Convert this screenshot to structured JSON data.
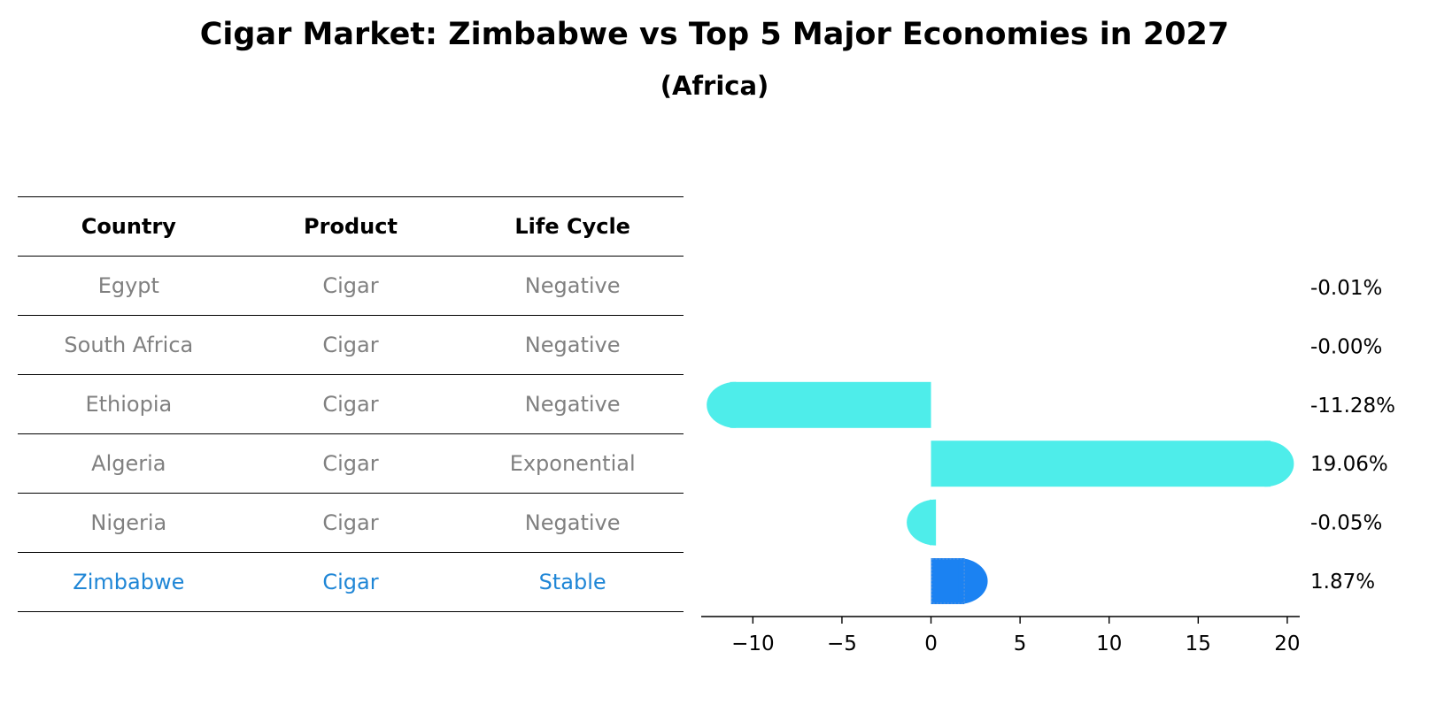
{
  "header": {
    "title": "Cigar Market: Zimbabwe vs Top 5 Major Economies in 2027",
    "subtitle": "(Africa)"
  },
  "table": {
    "columns": [
      "Country",
      "Product",
      "Life Cycle"
    ],
    "rows": [
      {
        "country": "Egypt",
        "product": "Cigar",
        "life_cycle": "Negative"
      },
      {
        "country": "South Africa",
        "product": "Cigar",
        "life_cycle": "Negative"
      },
      {
        "country": "Ethiopia",
        "product": "Cigar",
        "life_cycle": "Negative"
      },
      {
        "country": "Algeria",
        "product": "Cigar",
        "life_cycle": "Exponential"
      },
      {
        "country": "Nigeria",
        "product": "Cigar",
        "life_cycle": "Negative"
      },
      {
        "country": "Zimbabwe",
        "product": "Cigar",
        "life_cycle": "Stable"
      }
    ]
  },
  "chart_data": {
    "type": "bar",
    "orientation": "horizontal",
    "title": "Cigar Market: Zimbabwe vs Top 5 Major Economies in 2027",
    "subtitle": "(Africa)",
    "categories": [
      "Egypt",
      "South Africa",
      "Ethiopia",
      "Algeria",
      "Nigeria",
      "Zimbabwe"
    ],
    "values": [
      -0.01,
      -0.0,
      -11.28,
      19.06,
      -0.05,
      1.87
    ],
    "value_labels": [
      "-0.01%",
      "-0.00%",
      "-11.28%",
      "19.06%",
      "-0.05%",
      "1.87%"
    ],
    "highlight": "Zimbabwe",
    "colors": {
      "default": "#4eedea",
      "highlight": "#1b82f2"
    },
    "xlabel": "",
    "ylabel": "",
    "xlim": [
      -12.9,
      20.7
    ],
    "xticks": [
      -10,
      -5,
      0,
      5,
      10,
      15,
      20
    ],
    "xtick_labels": [
      "−10",
      "−5",
      "0",
      "5",
      "10",
      "15",
      "20"
    ],
    "grid": false,
    "legend": "none"
  },
  "colors": {
    "muted_text": "#808080",
    "highlight_text": "#1f86d6",
    "axis": "#000000"
  }
}
